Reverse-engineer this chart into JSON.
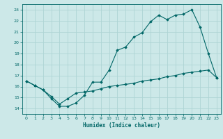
{
  "title": "",
  "xlabel": "Humidex (Indice chaleur)",
  "bg_color": "#cce8e8",
  "grid_color": "#aed4d4",
  "line_color": "#006666",
  "xlim": [
    -0.5,
    23.5
  ],
  "ylim": [
    13.5,
    23.5
  ],
  "yticks": [
    14,
    15,
    16,
    17,
    18,
    19,
    20,
    21,
    22,
    23
  ],
  "xticks": [
    0,
    1,
    2,
    3,
    4,
    5,
    6,
    7,
    8,
    9,
    10,
    11,
    12,
    13,
    14,
    15,
    16,
    17,
    18,
    19,
    20,
    21,
    22,
    23
  ],
  "line1_x": [
    0,
    1,
    2,
    3,
    4,
    5,
    6,
    7,
    8,
    9,
    10,
    11,
    12,
    13,
    14,
    15,
    16,
    17,
    18,
    19,
    20,
    21,
    22,
    23
  ],
  "line1_y": [
    16.5,
    16.1,
    15.7,
    14.9,
    14.2,
    14.2,
    14.5,
    15.2,
    16.4,
    16.4,
    17.5,
    19.3,
    19.6,
    20.5,
    20.9,
    21.9,
    22.5,
    22.1,
    22.5,
    22.6,
    23.0,
    21.4,
    19.0,
    16.8
  ],
  "line2_x": [
    0,
    1,
    2,
    3,
    4,
    5,
    6,
    7,
    8,
    9,
    10,
    11,
    12,
    13,
    14,
    15,
    16,
    17,
    18,
    19,
    20,
    21,
    22,
    23
  ],
  "line2_y": [
    16.5,
    16.1,
    15.7,
    15.1,
    14.4,
    14.9,
    15.4,
    15.5,
    15.6,
    15.8,
    16.0,
    16.1,
    16.2,
    16.3,
    16.5,
    16.6,
    16.7,
    16.9,
    17.0,
    17.2,
    17.3,
    17.4,
    17.5,
    16.8
  ]
}
